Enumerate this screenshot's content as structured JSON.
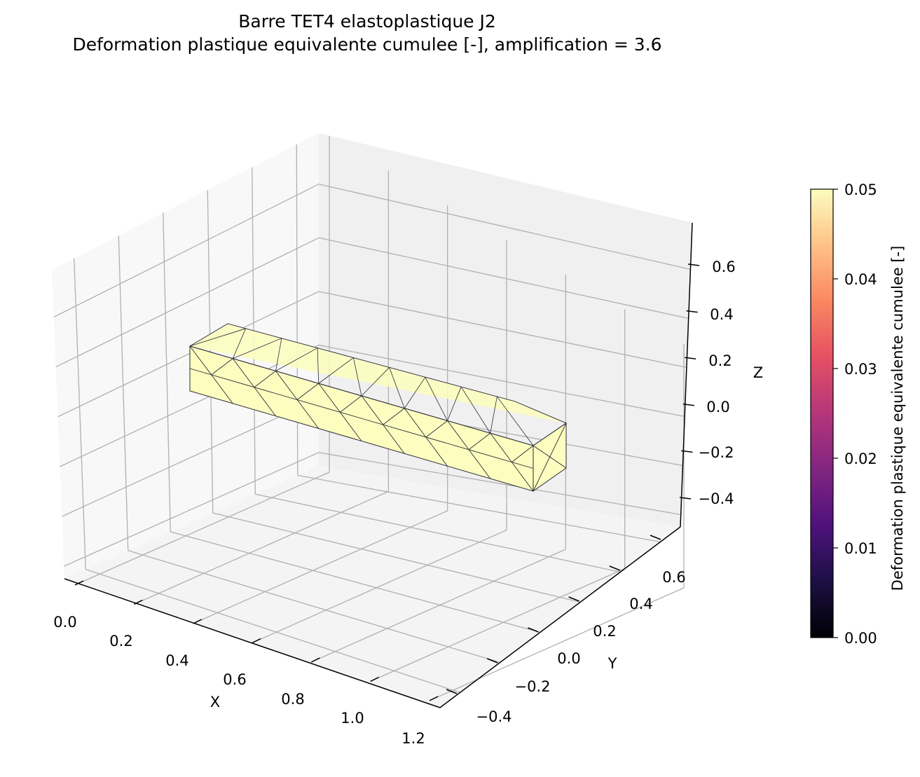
{
  "title": {
    "line1": "Barre TET4 elastoplastique J2",
    "line2": "Deformation plastique equivalente cumulee [-], amplification = 3.6"
  },
  "chart_data": {
    "type": "3d-mesh",
    "title": "Barre TET4 elastoplastique J2 — Deformation plastique equivalente cumulee [-], amplification = 3.6",
    "xlabel": "X",
    "ylabel": "Y",
    "zlabel": "Z",
    "x_ticks": [
      "0.0",
      "0.2",
      "0.4",
      "0.6",
      "0.8",
      "1.0",
      "1.2"
    ],
    "y_ticks": [
      "−0.4",
      "−0.2",
      "0.0",
      "0.2",
      "0.4",
      "0.6"
    ],
    "z_ticks": [
      "−0.4",
      "−0.2",
      "0.0",
      "0.2",
      "0.4",
      "0.6"
    ],
    "mesh": {
      "element": "TET4",
      "x_range": [
        0.0,
        1.0
      ],
      "y_range": [
        -0.1,
        0.1
      ],
      "z_range": [
        -0.1,
        0.1
      ],
      "uniform_value": 0.05,
      "face_color": "#fcfdbf",
      "edge_color": "#2b2b3a"
    },
    "colorbar": {
      "label": "Deformation plastique equivalente cumulee [-]",
      "colormap": "magma",
      "min": 0.0,
      "max": 0.05,
      "ticks": [
        "0.00",
        "0.01",
        "0.02",
        "0.03",
        "0.04",
        "0.05"
      ],
      "stops": [
        "#000004",
        "#1c1044",
        "#4f127b",
        "#812581",
        "#b5367a",
        "#e55064",
        "#fb8761",
        "#fec287",
        "#fcfdbf"
      ]
    },
    "grid": true,
    "legend": "none"
  }
}
